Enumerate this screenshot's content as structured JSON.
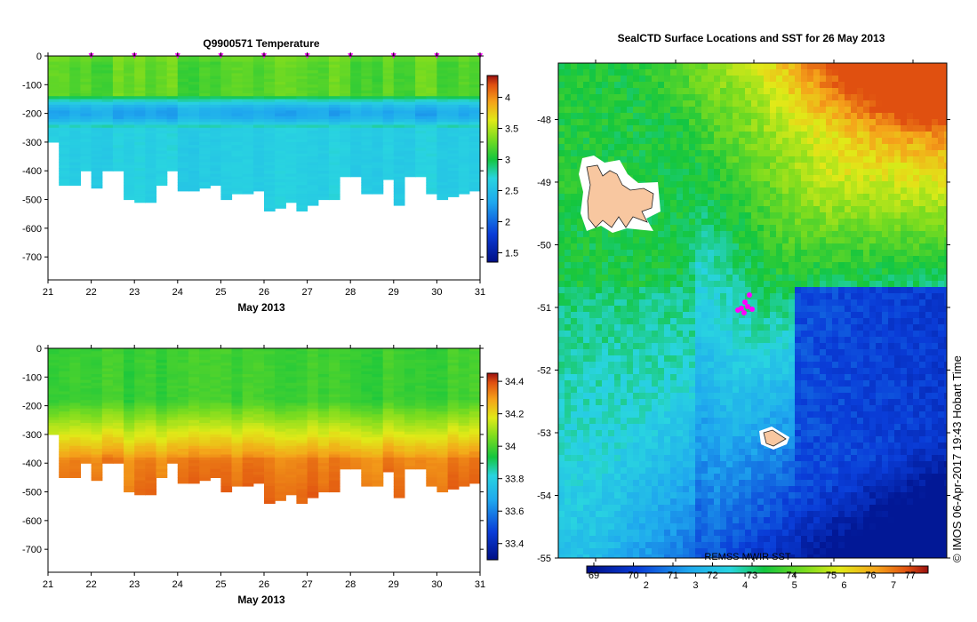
{
  "chart_data": [
    {
      "type": "heatmap",
      "title": "Q9900571  Temperature",
      "xlabel": "May 2013",
      "ylabel": "",
      "x_ticks": [
        "21",
        "22",
        "23",
        "24",
        "25",
        "26",
        "27",
        "28",
        "29",
        "30",
        "31"
      ],
      "xlim": [
        21,
        31
      ],
      "y_ticks": [
        0,
        -100,
        -200,
        -300,
        -400,
        -500,
        -600,
        -700
      ],
      "ylim": [
        -780,
        0
      ],
      "colorbar": {
        "ticks": [
          1.5,
          2,
          2.5,
          3,
          3.5,
          4
        ],
        "range": [
          1.35,
          4.35
        ]
      },
      "profile_times": [
        21.0,
        21.25,
        21.5,
        21.75,
        22.0,
        22.25,
        22.5,
        22.75,
        23.0,
        23.25,
        23.5,
        23.75,
        24.0,
        24.25,
        24.5,
        24.75,
        25.0,
        25.25,
        25.5,
        25.75,
        26.0,
        26.25,
        26.5,
        26.75,
        27.0,
        27.25,
        27.5,
        27.75,
        28.0,
        28.25,
        28.5,
        28.75,
        29.0,
        29.25,
        29.5,
        29.75,
        30.0,
        30.25,
        30.5,
        30.75,
        31.0
      ],
      "max_depth": [
        -300,
        -450,
        -450,
        -400,
        -460,
        -400,
        -400,
        -500,
        -510,
        -510,
        -450,
        -400,
        -470,
        -470,
        -460,
        -450,
        -500,
        -480,
        -480,
        -470,
        -535,
        -525,
        -510,
        -540,
        -520,
        -500,
        -500,
        -420,
        -420,
        -480,
        -480,
        -430,
        -515,
        -420,
        -420,
        -480,
        -495,
        -485,
        -475,
        -470,
        -475
      ],
      "surface_markers": [
        22,
        23,
        24,
        25,
        26,
        27,
        28,
        29,
        30,
        31
      ]
    },
    {
      "type": "heatmap",
      "title": "",
      "xlabel": "May 2013",
      "ylabel": "",
      "x_ticks": [
        "21",
        "22",
        "23",
        "24",
        "25",
        "26",
        "27",
        "28",
        "29",
        "30",
        "31"
      ],
      "xlim": [
        21,
        31
      ],
      "y_ticks": [
        0,
        -100,
        -200,
        -300,
        -400,
        -500,
        -600,
        -700
      ],
      "ylim": [
        -780,
        0
      ],
      "colorbar": {
        "ticks": [
          33.4,
          33.6,
          33.8,
          34,
          34.2,
          34.4
        ],
        "range": [
          33.3,
          34.45
        ]
      }
    },
    {
      "type": "heatmap",
      "title": "SealCTD Surface Locations and SST for 26 May 2013",
      "y_ticks": [
        "-48",
        "-49",
        "-50",
        "-51",
        "-52",
        "-53",
        "-54",
        "-55"
      ],
      "ylim": [
        -55,
        -47.1
      ],
      "colorbar_label": "REMSS MWIR SST",
      "colorbar_top_ticks": [
        "69",
        "70",
        "71",
        "72",
        "73",
        "74",
        "75",
        "76",
        "77"
      ],
      "colorbar_bottom_ticks": [
        "2",
        "3",
        "4",
        "5",
        "6",
        "7"
      ],
      "colorbar_range": [
        0.8,
        7.7
      ],
      "credit": "© IMOS 06-Apr-2017 19:43 Hobart Time"
    }
  ]
}
